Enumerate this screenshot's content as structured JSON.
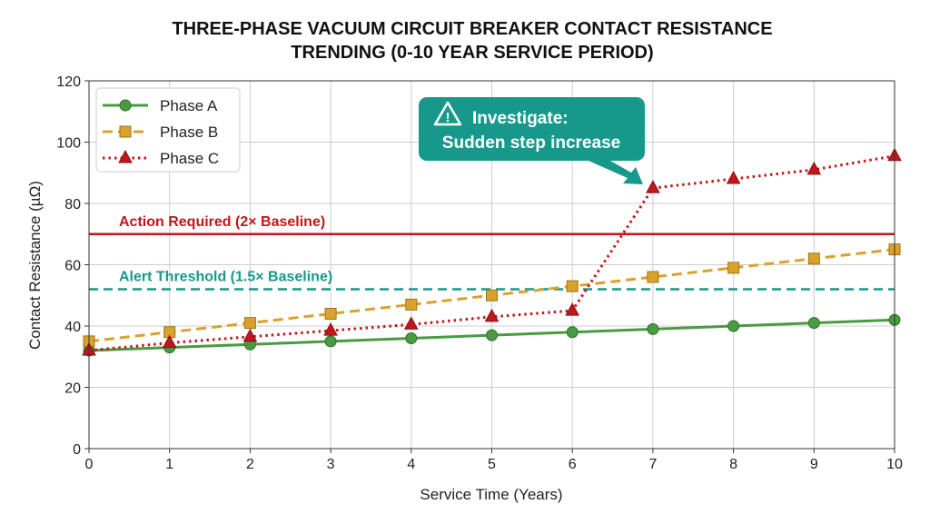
{
  "chart_data": {
    "type": "line",
    "title_lines": [
      "THREE-PHASE VACUUM CIRCUIT BREAKER CONTACT RESISTANCE",
      "TRENDING (0-10 YEAR SERVICE PERIOD)"
    ],
    "xlabel": "Service Time (Years)",
    "ylabel": "Contact Resistance (µΩ)",
    "xlim": [
      0,
      10
    ],
    "ylim": [
      0,
      120
    ],
    "xticks": [
      0,
      1,
      2,
      3,
      4,
      5,
      6,
      7,
      8,
      9,
      10
    ],
    "yticks": [
      0,
      20,
      40,
      60,
      80,
      100,
      120
    ],
    "grid": true,
    "legend_placement": "top-left",
    "x": [
      0,
      1,
      2,
      3,
      4,
      5,
      6,
      7,
      8,
      9,
      10
    ],
    "series": [
      {
        "name": "Phase A",
        "values": [
          32,
          33,
          34,
          35,
          36,
          37,
          38,
          39,
          40,
          41,
          42
        ],
        "color": "#4a9a43",
        "marker": "circle",
        "line": "solid"
      },
      {
        "name": "Phase B",
        "values": [
          35,
          38,
          41,
          44,
          47,
          50,
          53,
          56,
          59,
          62,
          65
        ],
        "color": "#d9a22c",
        "marker": "square",
        "line": "dashed"
      },
      {
        "name": "Phase C",
        "values": [
          32,
          34.5,
          36.5,
          38.5,
          40.5,
          43,
          45,
          85,
          88,
          91,
          95.5
        ],
        "color": "#c0171c",
        "marker": "triangle",
        "line": "dotted"
      }
    ],
    "reference_lines": [
      {
        "label": "Action Required (2× Baseline)",
        "y": 70,
        "color": "#c0171c",
        "style": "solid"
      },
      {
        "label": "Alert Threshold (1.5× Baseline)",
        "y": 52,
        "color": "#16998b",
        "style": "dashed"
      }
    ],
    "annotation": {
      "lines": [
        "Investigate:",
        "Sudden step increase"
      ],
      "icon": "warning-triangle-icon",
      "color": "#16998b",
      "points_to": {
        "x": 7,
        "y": 85
      }
    }
  }
}
